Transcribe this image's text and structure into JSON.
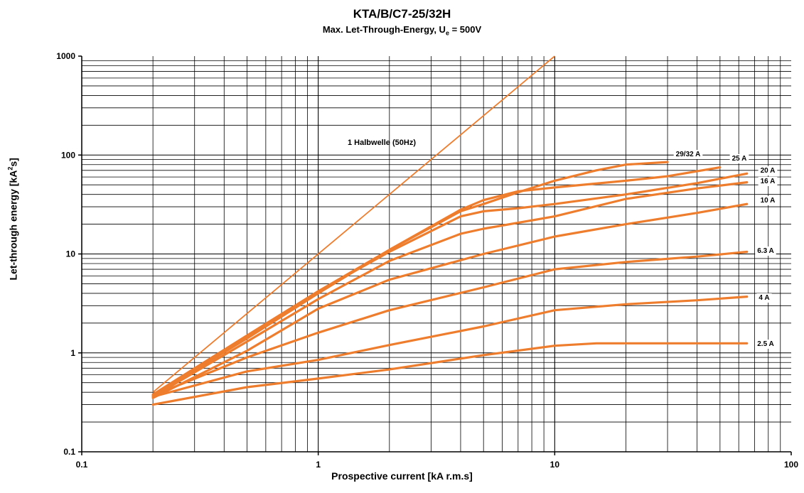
{
  "chart_data": {
    "type": "line",
    "title": "KTA/B/C7-25/32H",
    "subtitle_main": "Max. Let-Through-Energy, U",
    "subtitle_sub": "e",
    "subtitle_tail": " = 500V",
    "xlabel": "Prospective current  [kA r.m.s]",
    "ylabel_main": "Let-through energy  [kA",
    "ylabel_sup": "2",
    "ylabel_tail": "s]",
    "x_scale": "log",
    "y_scale": "log",
    "xlim": [
      0.1,
      100
    ],
    "ylim": [
      0.1,
      1000
    ],
    "x_ticks": [
      "0.1",
      "1",
      "10",
      "100"
    ],
    "y_ticks": [
      "0.1",
      "1",
      "10",
      "100",
      "1000"
    ],
    "grid": true,
    "line_color": "#ef7d2e",
    "reference_line": {
      "label": "1 Halbwelle (50Hz)",
      "x": [
        0.2,
        10
      ],
      "y": [
        0.4,
        1000
      ]
    },
    "series": [
      {
        "name": "29/32 A",
        "x": [
          0.2,
          0.5,
          1,
          2,
          4,
          5,
          7,
          10,
          15,
          20,
          30
        ],
        "y": [
          0.38,
          1.5,
          4.2,
          11,
          27,
          32,
          42,
          55,
          70,
          80,
          85
        ]
      },
      {
        "name": "25 A",
        "x": [
          0.2,
          0.5,
          1,
          2,
          4,
          5,
          7,
          10,
          20,
          30,
          50
        ],
        "y": [
          0.37,
          1.4,
          4,
          11,
          28,
          35,
          43,
          47,
          55,
          61,
          75
        ]
      },
      {
        "name": "20 A",
        "x": [
          0.2,
          0.5,
          1,
          2,
          4,
          5,
          7,
          10,
          20,
          40,
          65
        ],
        "y": [
          0.37,
          1.45,
          4.2,
          10.5,
          24,
          27,
          29,
          32,
          40,
          52,
          65
        ]
      },
      {
        "name": "16 A",
        "x": [
          0.2,
          0.5,
          1,
          2,
          4,
          5,
          10,
          20,
          40,
          65
        ],
        "y": [
          0.36,
          1.3,
          3.5,
          8.5,
          16,
          18,
          24,
          36,
          46,
          53
        ]
      },
      {
        "name": "10 A",
        "x": [
          0.2,
          0.5,
          1,
          2,
          5,
          10,
          20,
          40,
          65
        ],
        "y": [
          0.35,
          1.05,
          2.8,
          5.5,
          10,
          15,
          20,
          26,
          32
        ]
      },
      {
        "name": "6.3 A",
        "x": [
          0.2,
          0.5,
          1,
          2,
          5,
          10,
          20,
          40,
          65
        ],
        "y": [
          0.37,
          0.9,
          1.6,
          2.7,
          4.6,
          7,
          8.3,
          9.4,
          10.5
        ]
      },
      {
        "name": "4 A",
        "x": [
          0.2,
          0.5,
          1,
          2,
          5,
          10,
          20,
          40,
          65
        ],
        "y": [
          0.36,
          0.65,
          0.85,
          1.2,
          1.85,
          2.7,
          3.1,
          3.4,
          3.7
        ]
      },
      {
        "name": "2.5 A",
        "x": [
          0.2,
          0.5,
          1,
          2,
          5,
          10,
          15,
          30,
          65
        ],
        "y": [
          0.3,
          0.45,
          0.55,
          0.68,
          0.95,
          1.18,
          1.25,
          1.25,
          1.25
        ]
      }
    ]
  }
}
